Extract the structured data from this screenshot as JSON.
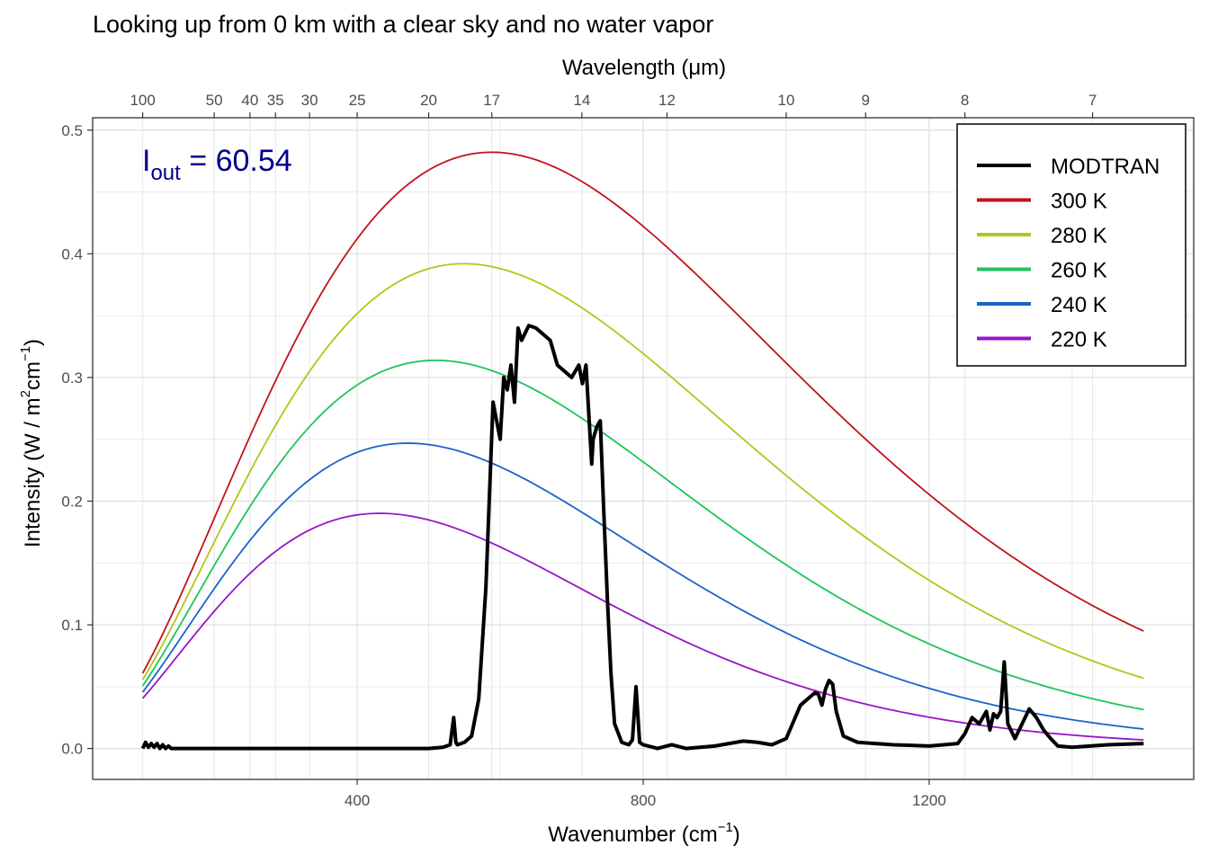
{
  "chart_data": {
    "type": "line",
    "title": "Looking up from 0 km with a clear sky and no water vapor",
    "xlabel": "Wavenumber (cm",
    "xlabel_sup": "−1",
    "xlabel_end": ")",
    "ylabel": "Intensity (W / m",
    "ylabel_sup1": "2",
    "ylabel_mid": "cm",
    "ylabel_sup2": "−1",
    "ylabel_end": ")",
    "top_axis_label": "Wavelength (μm)",
    "annotation": {
      "base": "I",
      "sub": "out",
      "eq": " = ",
      "value": "60.54",
      "color": "#00008B"
    },
    "xlim": [
      30,
      1570
    ],
    "ylim": [
      -0.025,
      0.51
    ],
    "x_ticks": [
      400,
      800,
      1200
    ],
    "x_tick_labels": [
      "400",
      "800",
      "1200"
    ],
    "y_ticks": [
      0.0,
      0.1,
      0.2,
      0.3,
      0.4,
      0.5
    ],
    "y_tick_labels": [
      "0.0",
      "0.1",
      "0.2",
      "0.3",
      "0.4",
      "0.5"
    ],
    "top_ticks_um": [
      100,
      50,
      40,
      35,
      30,
      25,
      20,
      17,
      14,
      12,
      10,
      9,
      8,
      7
    ],
    "top_tick_labels": [
      "100",
      "50",
      "40",
      "35",
      "30",
      "25",
      "20",
      "17",
      "14",
      "12",
      "10",
      "9",
      "8",
      "7"
    ],
    "grid": true,
    "legend_position": "top-right",
    "series": [
      {
        "name": "MODTRAN",
        "color": "#000000",
        "kind": "spectrum",
        "x": [
          100,
          104,
          108,
          112,
          116,
          120,
          124,
          128,
          132,
          136,
          140,
          150,
          200,
          300,
          400,
          500,
          520,
          530,
          535,
          538,
          540,
          545,
          550,
          560,
          570,
          580,
          590,
          600,
          605,
          610,
          615,
          620,
          625,
          630,
          640,
          650,
          660,
          670,
          680,
          700,
          710,
          715,
          720,
          725,
          728,
          730,
          735,
          740,
          745,
          750,
          755,
          760,
          770,
          780,
          785,
          790,
          795,
          800,
          820,
          840,
          860,
          900,
          940,
          960,
          980,
          1000,
          1020,
          1040,
          1045,
          1050,
          1055,
          1060,
          1065,
          1070,
          1080,
          1100,
          1150,
          1200,
          1240,
          1250,
          1260,
          1270,
          1280,
          1285,
          1290,
          1295,
          1300,
          1305,
          1310,
          1320,
          1330,
          1340,
          1350,
          1360,
          1370,
          1380,
          1400,
          1450,
          1500
        ],
        "y": [
          0.0,
          0.005,
          0.001,
          0.004,
          0.001,
          0.004,
          0.0,
          0.003,
          0.0,
          0.002,
          0.0,
          0.0,
          0.0,
          0.0,
          0.0,
          0.0,
          0.001,
          0.003,
          0.025,
          0.005,
          0.003,
          0.004,
          0.005,
          0.01,
          0.04,
          0.13,
          0.28,
          0.25,
          0.3,
          0.29,
          0.31,
          0.28,
          0.34,
          0.33,
          0.342,
          0.34,
          0.335,
          0.33,
          0.31,
          0.3,
          0.31,
          0.295,
          0.31,
          0.26,
          0.23,
          0.25,
          0.26,
          0.265,
          0.19,
          0.12,
          0.06,
          0.02,
          0.005,
          0.003,
          0.007,
          0.05,
          0.005,
          0.003,
          0.0,
          0.003,
          0.0,
          0.002,
          0.006,
          0.005,
          0.003,
          0.008,
          0.035,
          0.045,
          0.044,
          0.035,
          0.048,
          0.055,
          0.052,
          0.03,
          0.01,
          0.005,
          0.003,
          0.002,
          0.004,
          0.012,
          0.025,
          0.02,
          0.03,
          0.015,
          0.028,
          0.025,
          0.03,
          0.07,
          0.02,
          0.008,
          0.02,
          0.032,
          0.025,
          0.015,
          0.008,
          0.002,
          0.001,
          0.003,
          0.004
        ]
      },
      {
        "name": "300 K",
        "color": "#C0141C",
        "kind": "planck",
        "T": 300
      },
      {
        "name": "280 K",
        "color": "#B5C41A",
        "kind": "planck",
        "T": 280
      },
      {
        "name": "260 K",
        "color": "#1EC45A",
        "kind": "planck",
        "T": 260
      },
      {
        "name": "240 K",
        "color": "#1A64C8",
        "kind": "planck",
        "T": 240
      },
      {
        "name": "220 K",
        "color": "#9A14C8",
        "kind": "planck",
        "T": 220
      }
    ]
  }
}
